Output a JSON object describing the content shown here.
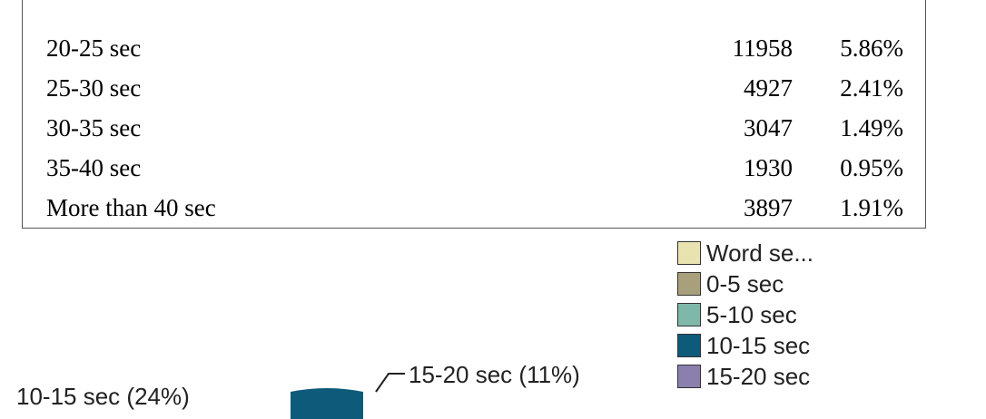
{
  "table": {
    "rows": [
      {
        "label": "20-25 sec",
        "count": "11958",
        "percent": "5.86%"
      },
      {
        "label": "25-30 sec",
        "count": "4927",
        "percent": "2.41%"
      },
      {
        "label": "30-35 sec",
        "count": "3047",
        "percent": "1.49%"
      },
      {
        "label": "35-40 sec",
        "count": "1930",
        "percent": "0.95%"
      },
      {
        "label": "More than 40 sec",
        "count": "3897",
        "percent": "1.91%"
      }
    ]
  },
  "legend": {
    "items": [
      {
        "label": "Word se...",
        "color": "#e8e3b0"
      },
      {
        "label": "0-5 sec",
        "color": "#a8a07a"
      },
      {
        "label": "5-10 sec",
        "color": "#7fb8a8"
      },
      {
        "label": "10-15 sec",
        "color": "#0e5a7a"
      },
      {
        "label": "15-20 sec",
        "color": "#8a7fad"
      }
    ]
  },
  "pie": {
    "label_15_20": "15-20 sec (11%)",
    "label_10_15": "10-15 sec (24%)",
    "slice_10_15_color": "#0e5a7a"
  }
}
